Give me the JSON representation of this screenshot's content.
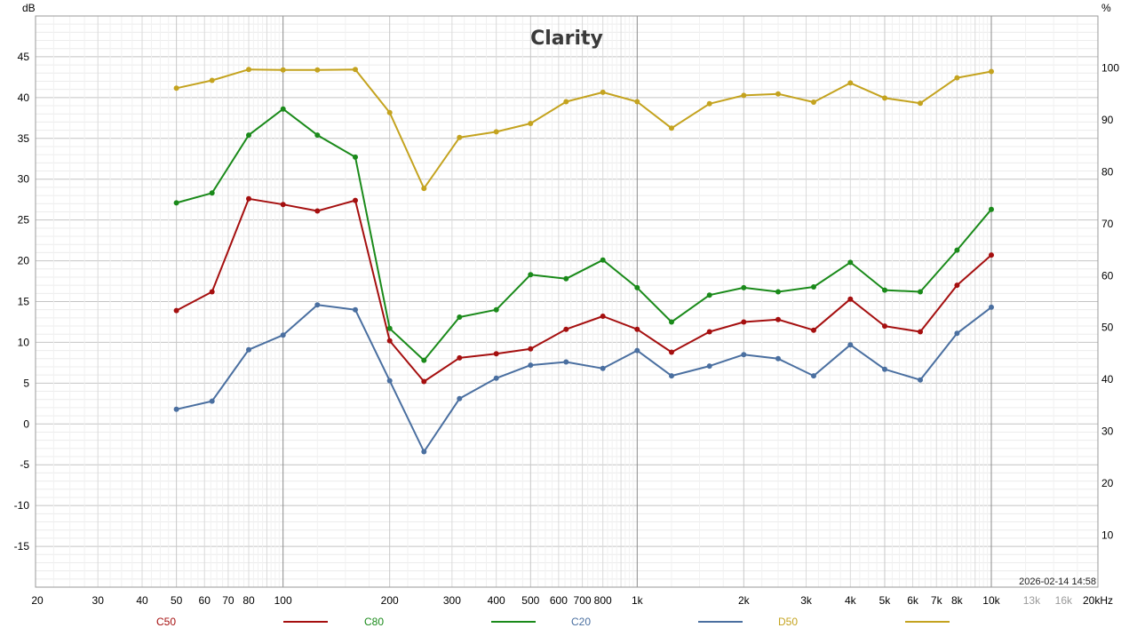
{
  "chart_data": {
    "type": "line",
    "title": "Clarity",
    "ylabel_left": "dB",
    "ylabel_right": "%",
    "x_scale": "log",
    "xlim": [
      20,
      20000
    ],
    "ylim_left": [
      -20,
      50
    ],
    "ylim_right": [
      0,
      110
    ],
    "grid": true,
    "timestamp": "2026-02-14 14:58",
    "x_ticks": [
      {
        "value": 20,
        "label": "20"
      },
      {
        "value": 30,
        "label": "30"
      },
      {
        "value": 40,
        "label": "40"
      },
      {
        "value": 50,
        "label": "50"
      },
      {
        "value": 60,
        "label": "60"
      },
      {
        "value": 70,
        "label": "70"
      },
      {
        "value": 80,
        "label": "80"
      },
      {
        "value": 100,
        "label": "100"
      },
      {
        "value": 200,
        "label": "200"
      },
      {
        "value": 300,
        "label": "300"
      },
      {
        "value": 400,
        "label": "400"
      },
      {
        "value": 500,
        "label": "500"
      },
      {
        "value": 600,
        "label": "600"
      },
      {
        "value": 700,
        "label": "700"
      },
      {
        "value": 800,
        "label": "800"
      },
      {
        "value": 1000,
        "label": "1k"
      },
      {
        "value": 2000,
        "label": "2k"
      },
      {
        "value": 3000,
        "label": "3k"
      },
      {
        "value": 4000,
        "label": "4k"
      },
      {
        "value": 5000,
        "label": "5k"
      },
      {
        "value": 6000,
        "label": "6k"
      },
      {
        "value": 7000,
        "label": "7k"
      },
      {
        "value": 8000,
        "label": "8k"
      },
      {
        "value": 10000,
        "label": "10k"
      },
      {
        "value": 13000,
        "label": "13k",
        "muted": true
      },
      {
        "value": 16000,
        "label": "16k",
        "muted": true
      },
      {
        "value": 20000,
        "label": "20kHz"
      }
    ],
    "y_ticks_left": [
      45,
      40,
      35,
      30,
      25,
      20,
      15,
      10,
      5,
      0,
      -5,
      -10,
      -15
    ],
    "y_ticks_right": [
      100,
      90,
      80,
      70,
      60,
      50,
      40,
      30,
      20,
      10
    ],
    "x": [
      50,
      63,
      80,
      100,
      125,
      160,
      200,
      250,
      315,
      400,
      500,
      630,
      800,
      1000,
      1250,
      1600,
      2000,
      2500,
      3150,
      4000,
      5000,
      6300,
      8000,
      10000
    ],
    "series": [
      {
        "name": "C50",
        "axis": "left",
        "color": "#a50f0f",
        "values": [
          13.9,
          16.2,
          27.6,
          26.9,
          26.1,
          27.4,
          10.2,
          5.2,
          8.1,
          8.6,
          9.2,
          11.6,
          13.2,
          11.6,
          8.8,
          11.3,
          12.5,
          12.8,
          11.5,
          15.3,
          12.0,
          11.3,
          17.0,
          20.7
        ]
      },
      {
        "name": "C80",
        "axis": "left",
        "color": "#1a8a1a",
        "values": [
          27.1,
          28.3,
          35.4,
          38.6,
          35.4,
          32.7,
          11.7,
          7.8,
          13.1,
          14.0,
          18.3,
          17.8,
          20.1,
          16.7,
          12.5,
          15.8,
          16.7,
          16.2,
          16.8,
          19.8,
          16.4,
          16.2,
          21.3,
          26.3
        ]
      },
      {
        "name": "C20",
        "axis": "left",
        "color": "#4a6fa0",
        "values": [
          1.8,
          2.8,
          9.1,
          10.9,
          14.6,
          14.0,
          5.3,
          -3.4,
          3.1,
          5.6,
          7.2,
          7.6,
          6.8,
          9.0,
          5.9,
          7.1,
          8.5,
          8.0,
          5.9,
          9.7,
          6.7,
          5.4,
          11.1,
          14.3
        ]
      },
      {
        "name": "D50",
        "axis": "right",
        "color": "#c4a31f",
        "values": [
          96.1,
          97.6,
          99.7,
          99.6,
          99.6,
          99.7,
          91.4,
          76.8,
          86.6,
          87.7,
          89.3,
          93.5,
          95.3,
          93.5,
          88.4,
          93.1,
          94.7,
          95.0,
          93.4,
          97.1,
          94.2,
          93.2,
          98.1,
          99.3
        ]
      }
    ]
  }
}
